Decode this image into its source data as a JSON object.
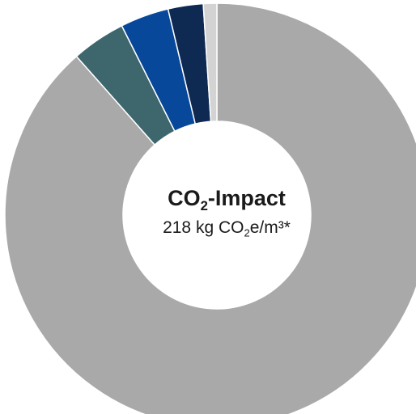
{
  "chart_data": {
    "type": "pie",
    "style": "donut",
    "center_text": {
      "title_main": "CO",
      "title_sub": "2",
      "title_rest": "-Impact",
      "value_main": "218 kg CO",
      "value_sub": "2",
      "value_rest": "e/m³*"
    },
    "slices": [
      {
        "value": 86.0,
        "color": "#a9a9a9"
      },
      {
        "value": 4.0,
        "color": "#3d666d"
      },
      {
        "value": 3.6,
        "color": "#07489a"
      },
      {
        "value": 2.6,
        "color": "#0e2a52"
      },
      {
        "value": 1.0,
        "color": "#d3d3d3"
      }
    ],
    "start_angle_deg": 0,
    "direction": "clockwise",
    "separator_color": "#ffffff"
  }
}
